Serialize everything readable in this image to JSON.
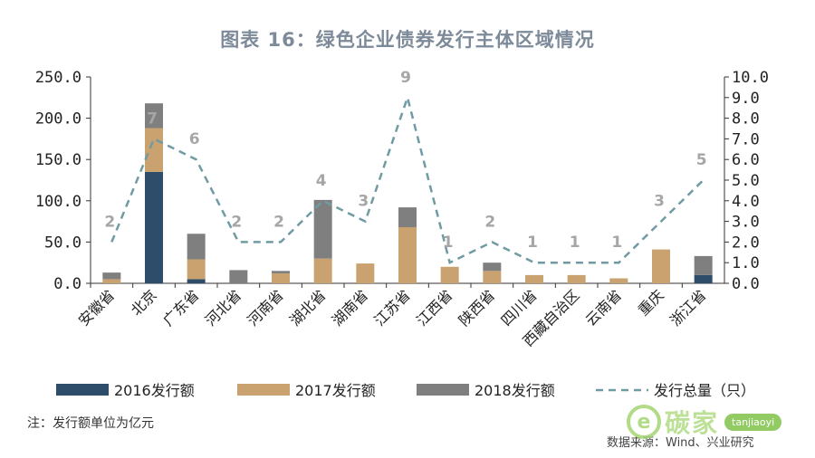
{
  "title": "图表 16：绿色企业债券发行主体区域情况",
  "note": "注：发行额单位为亿元",
  "source": "数据来源：Wind、兴业研究",
  "watermark": {
    "logo_char": "e",
    "brand": "碳家",
    "url": "tanjiaoyi"
  },
  "colors": {
    "s2016": "#2e4d6b",
    "s2017": "#c9a26f",
    "s2018": "#7f7f7f",
    "total": "#6f9ba3"
  },
  "chart_data": {
    "type": "bar",
    "stacked": true,
    "categories": [
      "安徽省",
      "北京",
      "广东省",
      "河北省",
      "河南省",
      "湖北省",
      "湖南省",
      "江苏省",
      "江西省",
      "陕西省",
      "四川省",
      "西藏自治区",
      "云南省",
      "重庆",
      "浙江省"
    ],
    "series": [
      {
        "name": "2016发行额",
        "axis": "left",
        "values": [
          0,
          135,
          5,
          0,
          0,
          0,
          0,
          0,
          0,
          0,
          0,
          0,
          0,
          0,
          10
        ]
      },
      {
        "name": "2017发行额",
        "axis": "left",
        "values": [
          5,
          53,
          24,
          0,
          12,
          30,
          24,
          68,
          20,
          15,
          10,
          10,
          6,
          41,
          0
        ]
      },
      {
        "name": "2018发行额",
        "axis": "left",
        "values": [
          8,
          30,
          31,
          16,
          3,
          71,
          0,
          24,
          0,
          10,
          0,
          0,
          0,
          0,
          23
        ]
      },
      {
        "name": "发行总量（只）",
        "axis": "right",
        "type": "line",
        "dashed": true,
        "values": [
          2,
          7,
          6,
          2,
          2,
          4,
          3,
          9,
          1,
          2,
          1,
          1,
          1,
          3,
          5
        ]
      }
    ],
    "y_left": {
      "min": 0,
      "max": 250,
      "ticks": [
        "0.0",
        "50.0",
        "100.0",
        "150.0",
        "200.0",
        "250.0"
      ]
    },
    "y_right": {
      "min": 0,
      "max": 10,
      "ticks": [
        "0.0",
        "1.0",
        "2.0",
        "3.0",
        "4.0",
        "5.0",
        "6.0",
        "7.0",
        "8.0",
        "9.0",
        "10.0"
      ]
    },
    "legend_position": "bottom"
  }
}
